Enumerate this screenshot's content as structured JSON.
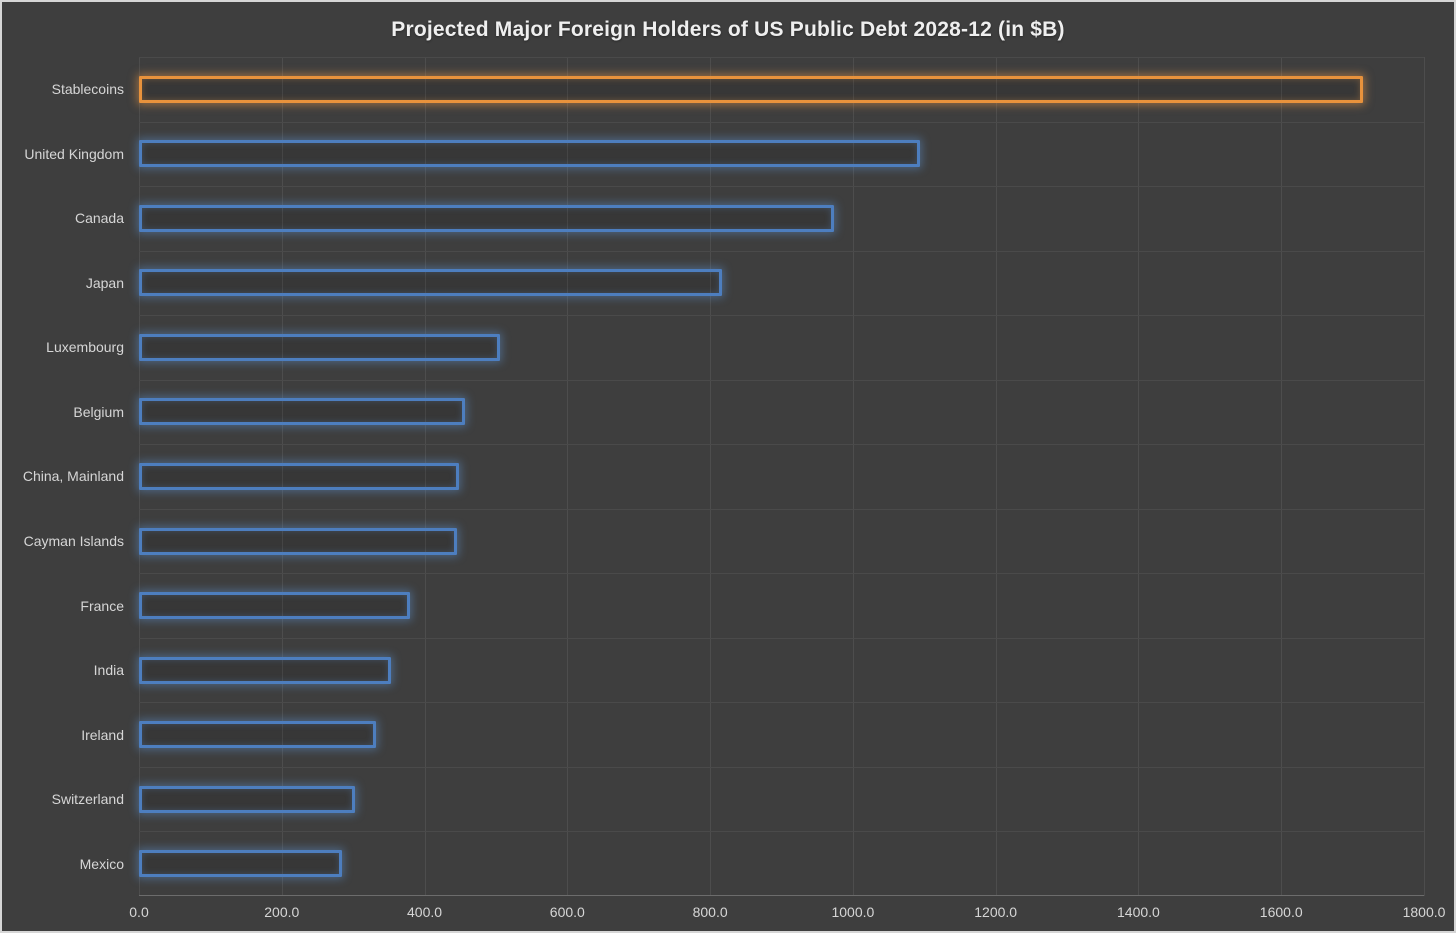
{
  "chart_data": {
    "type": "bar",
    "orientation": "horizontal",
    "title": "Projected Major Foreign Holders of US Public Debt 2028-12 (in $B)",
    "categories": [
      "Stablecoins",
      "United Kingdom",
      "Canada",
      "Japan",
      "Luxembourg",
      "Belgium",
      "China, Mainland",
      "Cayman Islands",
      "France",
      "India",
      "Ireland",
      "Switzerland",
      "Mexico"
    ],
    "values": [
      1715,
      1094,
      973,
      817,
      506,
      457,
      448,
      445,
      380,
      353,
      332,
      303,
      284
    ],
    "highlight_category": "Stablecoins",
    "xlim": [
      0,
      1800
    ],
    "x_ticks": [
      0,
      200,
      400,
      600,
      800,
      1000,
      1200,
      1400,
      1600,
      1800
    ],
    "x_tick_labels": [
      "0.0",
      "200.0",
      "400.0",
      "600.0",
      "800.0",
      "1000.0",
      "1200.0",
      "1400.0",
      "1600.0",
      "1800.0"
    ],
    "xlabel": "",
    "ylabel": "",
    "grid": true,
    "legend_position": "none",
    "colors": {
      "background": "#3E3E3E",
      "bar_outline_blue": "#4D7EBF",
      "bar_outline_orange": "#E8923C",
      "grid_line": "#4D4D4D",
      "axis_line": "#6C6C6C",
      "label_text": "#D6D6D6",
      "title_text": "#EFEFEF",
      "frame_border": "#D6D6D6"
    }
  }
}
